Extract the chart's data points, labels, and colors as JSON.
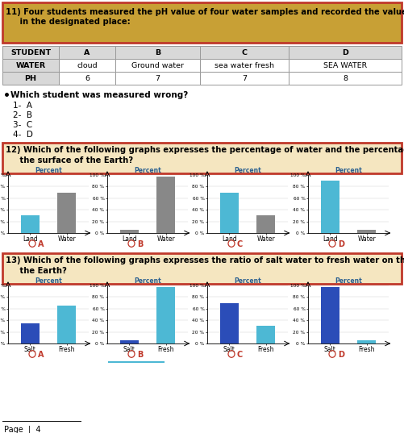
{
  "q11_title_line1": "11) Four students measured the pH value of four water samples and recorded the value in the table",
  "q11_title_line2": "     in the designated place:",
  "table_headers": [
    "STUDENT",
    "A",
    "B",
    "C",
    "D"
  ],
  "table_row1": [
    "WATER",
    "cloud",
    "Ground water",
    "sea water fresh",
    "SEA WATER"
  ],
  "table_row2": [
    "PH",
    "6",
    "7",
    "7",
    "8"
  ],
  "bullet_text": "Which student was measured wrong?",
  "choices_q11": [
    "1-  A",
    "2-  B",
    "3-  C",
    "4-  D"
  ],
  "q12_title_line1": "12) Which of the following graphs expresses the percentage of water and the percentage of land on",
  "q12_title_line2": "     the surface of the Earth?",
  "q13_title_line1": "13) Which of the following graphs expresses the ratio of salt water to fresh water on the surface of",
  "q13_title_line2": "     the Earth?",
  "header_bg": "#c8a035",
  "box_bg": "#f5e6c0",
  "box_border": "#c0392b",
  "page_text": "Page  |  4",
  "label_color": "#c0392b",
  "title_color": "#2b6090",
  "q12_bars": [
    {
      "vals": [
        30,
        70
      ],
      "colors": [
        "#4db8d4",
        "#888888"
      ]
    },
    {
      "vals": [
        5,
        97
      ],
      "colors": [
        "#888888",
        "#888888"
      ]
    },
    {
      "vals": [
        70,
        30
      ],
      "colors": [
        "#4db8d4",
        "#888888"
      ]
    },
    {
      "vals": [
        90,
        5
      ],
      "colors": [
        "#4db8d4",
        "#888888"
      ]
    }
  ],
  "q12_xlabels": [
    "Land",
    "Water"
  ],
  "q13_bars": [
    {
      "vals": [
        35,
        65
      ],
      "colors": [
        "#2b4db8",
        "#4db8d4"
      ]
    },
    {
      "vals": [
        5,
        97
      ],
      "colors": [
        "#2b4db8",
        "#4db8d4"
      ]
    },
    {
      "vals": [
        70,
        30
      ],
      "colors": [
        "#2b4db8",
        "#4db8d4"
      ]
    },
    {
      "vals": [
        97,
        5
      ],
      "colors": [
        "#2b4db8",
        "#4db8d4"
      ]
    }
  ],
  "q13_xlabels": [
    "Salt",
    "Fresh"
  ],
  "chart_letters": [
    "A",
    "B",
    "C",
    "D"
  ],
  "fig_w": 5.01,
  "fig_h": 5.37,
  "dpi": 100
}
